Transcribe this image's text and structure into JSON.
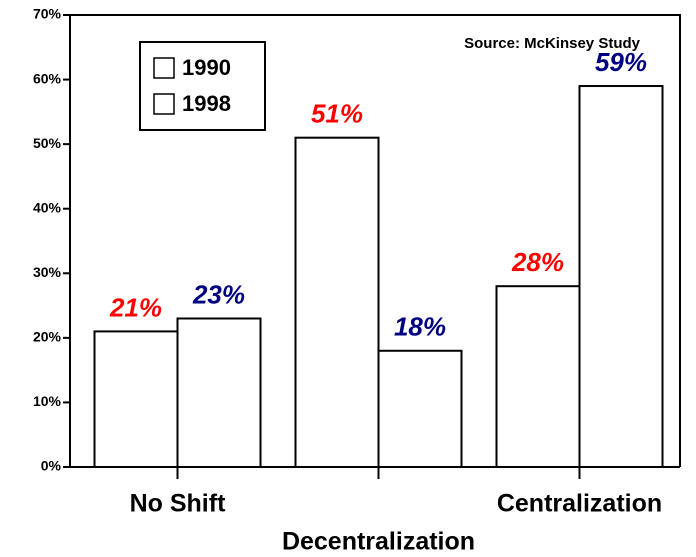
{
  "chart_data": {
    "type": "bar",
    "annotations": [
      "Source:  McKinsey Study"
    ],
    "categories": [
      "No Shift",
      "Decentralization",
      "Centralization"
    ],
    "series": [
      {
        "name": "1990",
        "color": "#ffffff",
        "label_color": "#ff0000",
        "values": [
          21,
          51,
          28
        ],
        "value_labels": [
          "21%",
          "51%",
          "28%"
        ]
      },
      {
        "name": "1998",
        "color": "#ffffff",
        "label_color": "#000080",
        "values": [
          23,
          18,
          59
        ],
        "value_labels": [
          "23%",
          "18%",
          "59%"
        ]
      }
    ],
    "ylim": [
      0,
      70
    ],
    "yticks": [
      {
        "value": 0,
        "label": "0%"
      },
      {
        "value": 10,
        "label": "10%"
      },
      {
        "value": 20,
        "label": "20%"
      },
      {
        "value": 30,
        "label": "30%"
      },
      {
        "value": 40,
        "label": "40%"
      },
      {
        "value": 50,
        "label": "50%"
      },
      {
        "value": 60,
        "label": "60%"
      },
      {
        "value": 70,
        "label": "70%"
      }
    ],
    "legend": "upper left"
  }
}
